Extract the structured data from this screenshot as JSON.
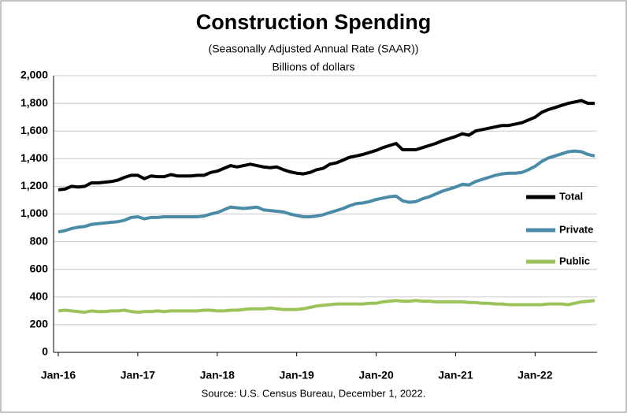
{
  "chart_data": {
    "type": "line",
    "title": "Construction Spending",
    "subtitle": "(Seasonally Adjusted  Annual Rate (SAAR))",
    "y_unit": "Billions of dollars",
    "source": "Source: U.S. Census Bureau, December 1, 2022.",
    "categories": [
      "Jan-16",
      null,
      null,
      null,
      null,
      null,
      null,
      null,
      null,
      null,
      null,
      null,
      "Jan-17",
      null,
      null,
      null,
      null,
      null,
      null,
      null,
      null,
      null,
      null,
      null,
      "Jan-18",
      null,
      null,
      null,
      null,
      null,
      null,
      null,
      null,
      null,
      null,
      null,
      "Jan-19",
      null,
      null,
      null,
      null,
      null,
      null,
      null,
      null,
      null,
      null,
      null,
      "Jan-20",
      null,
      null,
      null,
      null,
      null,
      null,
      null,
      null,
      null,
      null,
      null,
      "Jan-21",
      null,
      null,
      null,
      null,
      null,
      null,
      null,
      null,
      null,
      null,
      null,
      "Jan-22",
      null,
      null,
      null,
      null,
      null,
      null,
      null,
      null,
      null
    ],
    "series": [
      {
        "name": "Total",
        "color": "#000000",
        "values": [
          1175,
          1180,
          1200,
          1195,
          1200,
          1225,
          1225,
          1230,
          1235,
          1245,
          1265,
          1280,
          1280,
          1255,
          1275,
          1270,
          1270,
          1285,
          1275,
          1275,
          1275,
          1280,
          1280,
          1300,
          1310,
          1330,
          1350,
          1340,
          1350,
          1360,
          1350,
          1340,
          1335,
          1340,
          1320,
          1305,
          1295,
          1290,
          1300,
          1320,
          1330,
          1360,
          1370,
          1390,
          1410,
          1420,
          1430,
          1445,
          1460,
          1480,
          1495,
          1510,
          1465,
          1465,
          1465,
          1480,
          1495,
          1510,
          1530,
          1545,
          1560,
          1580,
          1570,
          1600,
          1610,
          1620,
          1630,
          1640,
          1640,
          1650,
          1660,
          1680,
          1700,
          1735,
          1755,
          1770,
          1785,
          1800,
          1810,
          1820,
          1800,
          1800
        ]
      },
      {
        "name": "Private",
        "color": "#4a8ba8",
        "values": [
          870,
          880,
          895,
          905,
          910,
          925,
          930,
          935,
          940,
          945,
          955,
          975,
          980,
          965,
          975,
          975,
          980,
          980,
          980,
          980,
          980,
          980,
          985,
          1000,
          1010,
          1030,
          1050,
          1045,
          1040,
          1045,
          1050,
          1030,
          1025,
          1020,
          1015,
          1000,
          990,
          980,
          980,
          985,
          995,
          1010,
          1025,
          1040,
          1060,
          1075,
          1080,
          1090,
          1105,
          1115,
          1125,
          1130,
          1095,
          1085,
          1090,
          1110,
          1125,
          1145,
          1165,
          1180,
          1195,
          1215,
          1210,
          1235,
          1250,
          1265,
          1280,
          1290,
          1295,
          1295,
          1300,
          1320,
          1345,
          1380,
          1405,
          1420,
          1435,
          1450,
          1455,
          1450,
          1430,
          1420
        ]
      },
      {
        "name": "Public",
        "color": "#9bc35a",
        "values": [
          300,
          305,
          300,
          295,
          290,
          300,
          295,
          295,
          300,
          300,
          305,
          295,
          290,
          295,
          295,
          300,
          295,
          300,
          300,
          300,
          300,
          300,
          305,
          305,
          300,
          300,
          305,
          305,
          310,
          315,
          315,
          315,
          320,
          315,
          310,
          310,
          310,
          315,
          325,
          335,
          340,
          345,
          350,
          350,
          350,
          350,
          350,
          355,
          355,
          365,
          370,
          375,
          370,
          370,
          375,
          370,
          370,
          365,
          365,
          365,
          365,
          365,
          360,
          360,
          355,
          355,
          350,
          350,
          345,
          345,
          345,
          345,
          345,
          345,
          350,
          350,
          350,
          345,
          355,
          365,
          370,
          375
        ]
      }
    ],
    "ylim": [
      0,
      2000
    ],
    "yticks": [
      0,
      200,
      400,
      600,
      800,
      {
        "value": 1000,
        "label": "1,000"
      },
      {
        "value": 1200,
        "label": "1,200"
      },
      {
        "value": 1400,
        "label": "1,400"
      },
      {
        "value": 1600,
        "label": "1,600"
      },
      {
        "value": 1800,
        "label": "1,800"
      },
      {
        "value": 2000,
        "label": "2,000"
      }
    ],
    "grid": true,
    "legend": "right"
  }
}
